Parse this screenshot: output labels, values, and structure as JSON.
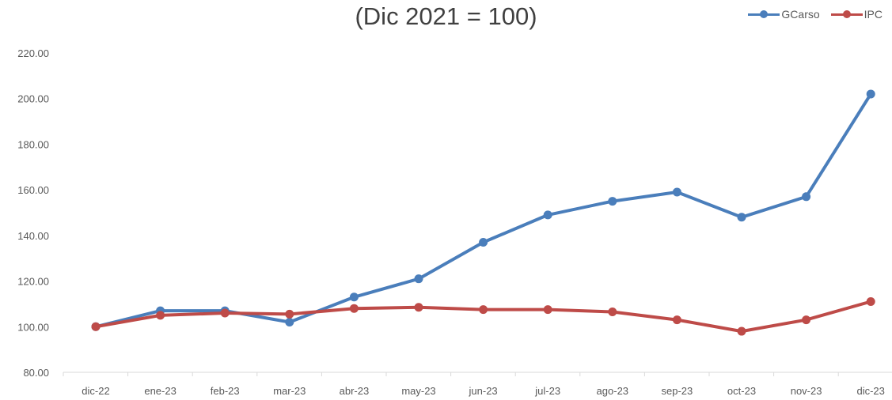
{
  "chart_data": {
    "type": "line",
    "title": "(Dic 2021 = 100)",
    "title_line_1": "",
    "xlabel": "",
    "ylabel": "",
    "categories": [
      "dic-22",
      "ene-23",
      "feb-23",
      "mar-23",
      "abr-23",
      "may-23",
      "jun-23",
      "jul-23",
      "ago-23",
      "sep-23",
      "oct-23",
      "nov-23",
      "dic-23"
    ],
    "ylim": [
      80,
      220
    ],
    "yticks": [
      80,
      100,
      120,
      140,
      160,
      180,
      200,
      220
    ],
    "ytick_labels": [
      "80.00",
      "100.00",
      "120.00",
      "140.00",
      "160.00",
      "180.00",
      "200.00",
      "220.00"
    ],
    "grid": false,
    "legend_position": "top-right",
    "series": [
      {
        "name": "GCarso",
        "color": "#4a7ebb",
        "values": [
          100,
          107,
          107,
          102,
          113,
          121,
          137,
          149,
          155,
          159,
          148,
          157,
          202
        ]
      },
      {
        "name": "IPC",
        "color": "#be4b48",
        "values": [
          100,
          105,
          106,
          105.5,
          108,
          108.5,
          107.5,
          107.5,
          106.5,
          103,
          98,
          103,
          111
        ]
      }
    ]
  }
}
